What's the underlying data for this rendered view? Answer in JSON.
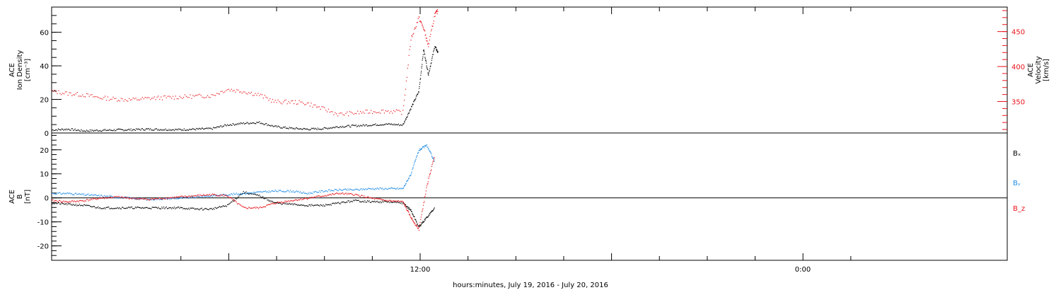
{
  "colors": {
    "black": "#000000",
    "red": "#e8141c",
    "blue": "#1e8ce6"
  },
  "xlabel": "hours:minutes, July 19, 2016 - July 20, 2016",
  "x_ticks": [
    "12:00",
    "0:00"
  ],
  "chart_data": [
    {
      "type": "scatter",
      "ylabel_left": [
        "ACE",
        "Ion Density",
        "[cm⁻³]"
      ],
      "ylabel_right": [
        "ACE",
        "Velocity",
        "[km/s]"
      ],
      "left_ticks": [
        "0",
        "20",
        "40",
        "60"
      ],
      "right_ticks": [
        "350",
        "400",
        "450"
      ],
      "ylim_left": [
        0,
        75
      ],
      "ylim_right": [
        305,
        485
      ],
      "series": [
        {
          "axis": "left",
          "color": "#000000",
          "x": [
            0,
            1,
            2,
            3,
            4,
            5,
            6,
            7,
            8,
            9,
            10,
            11,
            12,
            13,
            14,
            15,
            16,
            17,
            18,
            19,
            20,
            21,
            22,
            22.5,
            23,
            23.3,
            23.6,
            24,
            24.2
          ],
          "y": [
            2,
            2.5,
            1.5,
            1.8,
            2,
            2.2,
            2.5,
            2.3,
            2.2,
            2.5,
            2.8,
            5,
            6,
            6.5,
            4,
            3,
            2.5,
            2.8,
            4,
            4.5,
            5,
            5.5,
            5,
            15,
            25,
            50,
            35,
            52,
            48
          ]
        },
        {
          "axis": "right",
          "color": "#e8141c",
          "x": [
            0,
            1,
            2,
            3,
            4,
            5,
            6,
            7,
            8,
            9,
            10,
            11,
            12,
            13,
            14,
            15,
            16,
            17,
            18,
            19,
            20,
            21,
            22,
            22.5,
            23,
            23.3,
            23.6,
            24,
            24.2
          ],
          "y": [
            365,
            362,
            360,
            356,
            354,
            353,
            355,
            356,
            357,
            358,
            359,
            368,
            365,
            360,
            350,
            350,
            348,
            340,
            332,
            334,
            336,
            337,
            335,
            440,
            470,
            455,
            430,
            475,
            480
          ]
        }
      ]
    },
    {
      "type": "scatter",
      "ylabel_left": [
        "ACE",
        "B",
        "[nT]"
      ],
      "left_ticks": [
        "-20",
        "-10",
        "0",
        "10",
        "20"
      ],
      "ylim": [
        -26,
        27
      ],
      "legend": [
        {
          "label": "Bₓ",
          "color": "#000000"
        },
        {
          "label": "Bᵧ",
          "color": "#1e8ce6"
        },
        {
          "label": "B_z",
          "color": "#e8141c"
        }
      ],
      "series": [
        {
          "name": "Bₓ",
          "color": "#000000",
          "x": [
            0,
            1,
            2,
            3,
            4,
            5,
            6,
            7,
            8,
            9,
            10,
            11,
            12,
            13,
            14,
            15,
            16,
            17,
            18,
            19,
            20,
            21,
            22,
            22.5,
            23,
            23.5,
            24
          ],
          "y": [
            -2,
            -2.5,
            -3,
            -4,
            -4,
            -4,
            -4,
            -4,
            -4,
            -4.5,
            -4.5,
            -3,
            2.5,
            1,
            -2,
            -2.5,
            -3,
            -3,
            -2,
            -1,
            -1.5,
            -1.5,
            -2,
            -5,
            -12,
            -8,
            -4
          ]
        },
        {
          "name": "Bᵧ",
          "color": "#1e8ce6",
          "x": [
            0,
            1,
            2,
            3,
            4,
            5,
            6,
            7,
            8,
            9,
            10,
            11,
            12,
            13,
            14,
            15,
            16,
            17,
            18,
            19,
            20,
            21,
            22,
            22.5,
            23,
            23.5,
            24
          ],
          "y": [
            2,
            2,
            1.5,
            1,
            0.5,
            0,
            -0.5,
            -0.2,
            0,
            0.5,
            1,
            1.5,
            2,
            2.5,
            3,
            3,
            2,
            3,
            3.5,
            3.5,
            4,
            4,
            4,
            10,
            20,
            22,
            15
          ]
        },
        {
          "name": "B_z",
          "color": "#e8141c",
          "x": [
            0,
            1,
            2,
            3,
            4,
            5,
            6,
            7,
            8,
            9,
            10,
            11,
            12,
            13,
            14,
            15,
            16,
            17,
            18,
            19,
            20,
            21,
            22,
            22.5,
            23,
            23.5,
            24
          ],
          "y": [
            -1,
            -1.5,
            -1,
            0,
            0.5,
            0,
            -0.5,
            0,
            0.5,
            1,
            1.5,
            1,
            -4,
            -4,
            -2,
            -1,
            0,
            1,
            2,
            1.5,
            0,
            -1,
            -1.5,
            -8,
            -13,
            5,
            18
          ]
        }
      ]
    }
  ]
}
